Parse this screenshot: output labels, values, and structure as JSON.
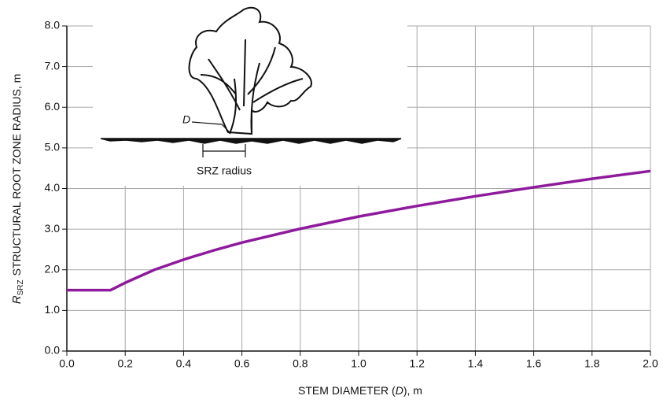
{
  "chart_data": {
    "type": "line",
    "x_label": {
      "before": "STEM DIAMETER (",
      "symbol": "D",
      "after": "), m"
    },
    "y_label": {
      "symbol": "R",
      "subscript": "SRZ",
      "text": "STRUCTURAL ROOT ZONE RADIUS, m"
    },
    "annotations": {
      "stem": "D",
      "radius": "SRZ radius"
    },
    "x": [
      0,
      0.15,
      0.2,
      0.3,
      0.4,
      0.5,
      0.6,
      0.8,
      1.0,
      1.2,
      1.4,
      1.6,
      1.8,
      2.0
    ],
    "series": [
      {
        "name": "SRZ",
        "color": "#8e1a9c",
        "values": [
          1.5,
          1.5,
          1.68,
          2.0,
          2.25,
          2.47,
          2.67,
          3.01,
          3.31,
          3.57,
          3.81,
          4.03,
          4.24,
          4.43
        ]
      }
    ],
    "xlim": [
      0,
      2.0
    ],
    "ylim": [
      0,
      8.0
    ],
    "xticks": [
      {
        "value": 0,
        "label": "0.0"
      },
      0.2,
      0.4,
      0.6,
      0.8,
      {
        "value": 1,
        "label": "1.0"
      },
      1.2,
      1.4,
      1.6,
      1.8,
      {
        "value": 2,
        "label": "2.0"
      }
    ],
    "yticks": [
      {
        "value": 0,
        "label": "0.0"
      },
      {
        "value": 1,
        "label": "1.0"
      },
      {
        "value": 2,
        "label": "2.0"
      },
      {
        "value": 3,
        "label": "3.0"
      },
      {
        "value": 4,
        "label": "4.0"
      },
      {
        "value": 5,
        "label": "5.0"
      },
      {
        "value": 6,
        "label": "6.0"
      },
      {
        "value": 7,
        "label": "7.0"
      },
      {
        "value": 8,
        "label": "8.0"
      }
    ],
    "grid": true
  }
}
